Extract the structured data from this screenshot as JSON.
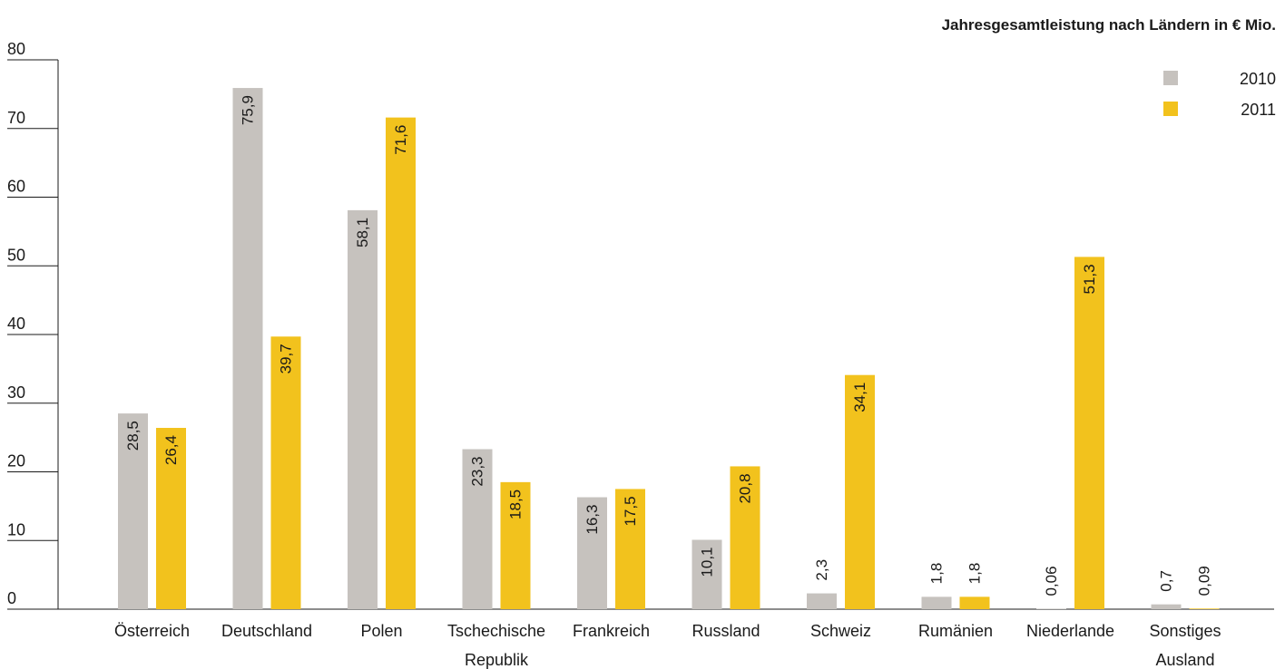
{
  "chart_data": {
    "type": "bar",
    "title": "Jahresgesamtleistung nach Ländern in € Mio.",
    "xlabel": "",
    "ylabel": "",
    "ylim": [
      0,
      80
    ],
    "yticks": [
      0,
      10,
      20,
      30,
      40,
      50,
      60,
      70,
      80
    ],
    "grid": false,
    "legend_position": "top-right",
    "categories": [
      [
        "Österreich"
      ],
      [
        "Deutschland"
      ],
      [
        "Polen"
      ],
      [
        "Tschechische",
        "Republik"
      ],
      [
        "Frankreich"
      ],
      [
        "Russland"
      ],
      [
        "Schweiz"
      ],
      [
        "Rumänien"
      ],
      [
        "Niederlande"
      ],
      [
        "Sonstiges",
        "Ausland"
      ]
    ],
    "series": [
      {
        "name": "2010",
        "color": "#c6c2be",
        "values": [
          28.5,
          75.9,
          58.1,
          23.3,
          16.3,
          10.1,
          2.3,
          1.8,
          0.06,
          0.7
        ],
        "labels": [
          "28,5",
          "75,9",
          "58,1",
          "23,3",
          "16,3",
          "10,1",
          "2,3",
          "1,8",
          "0,06",
          "0,7"
        ]
      },
      {
        "name": "2011",
        "color": "#f2c21d",
        "values": [
          26.4,
          39.7,
          71.6,
          18.5,
          17.5,
          20.8,
          34.1,
          1.8,
          51.3,
          0.09
        ],
        "labels": [
          "26,4",
          "39,7",
          "71,6",
          "18,5",
          "17,5",
          "20,8",
          "34,1",
          "1,8",
          "51,3",
          "0,09"
        ]
      }
    ]
  }
}
